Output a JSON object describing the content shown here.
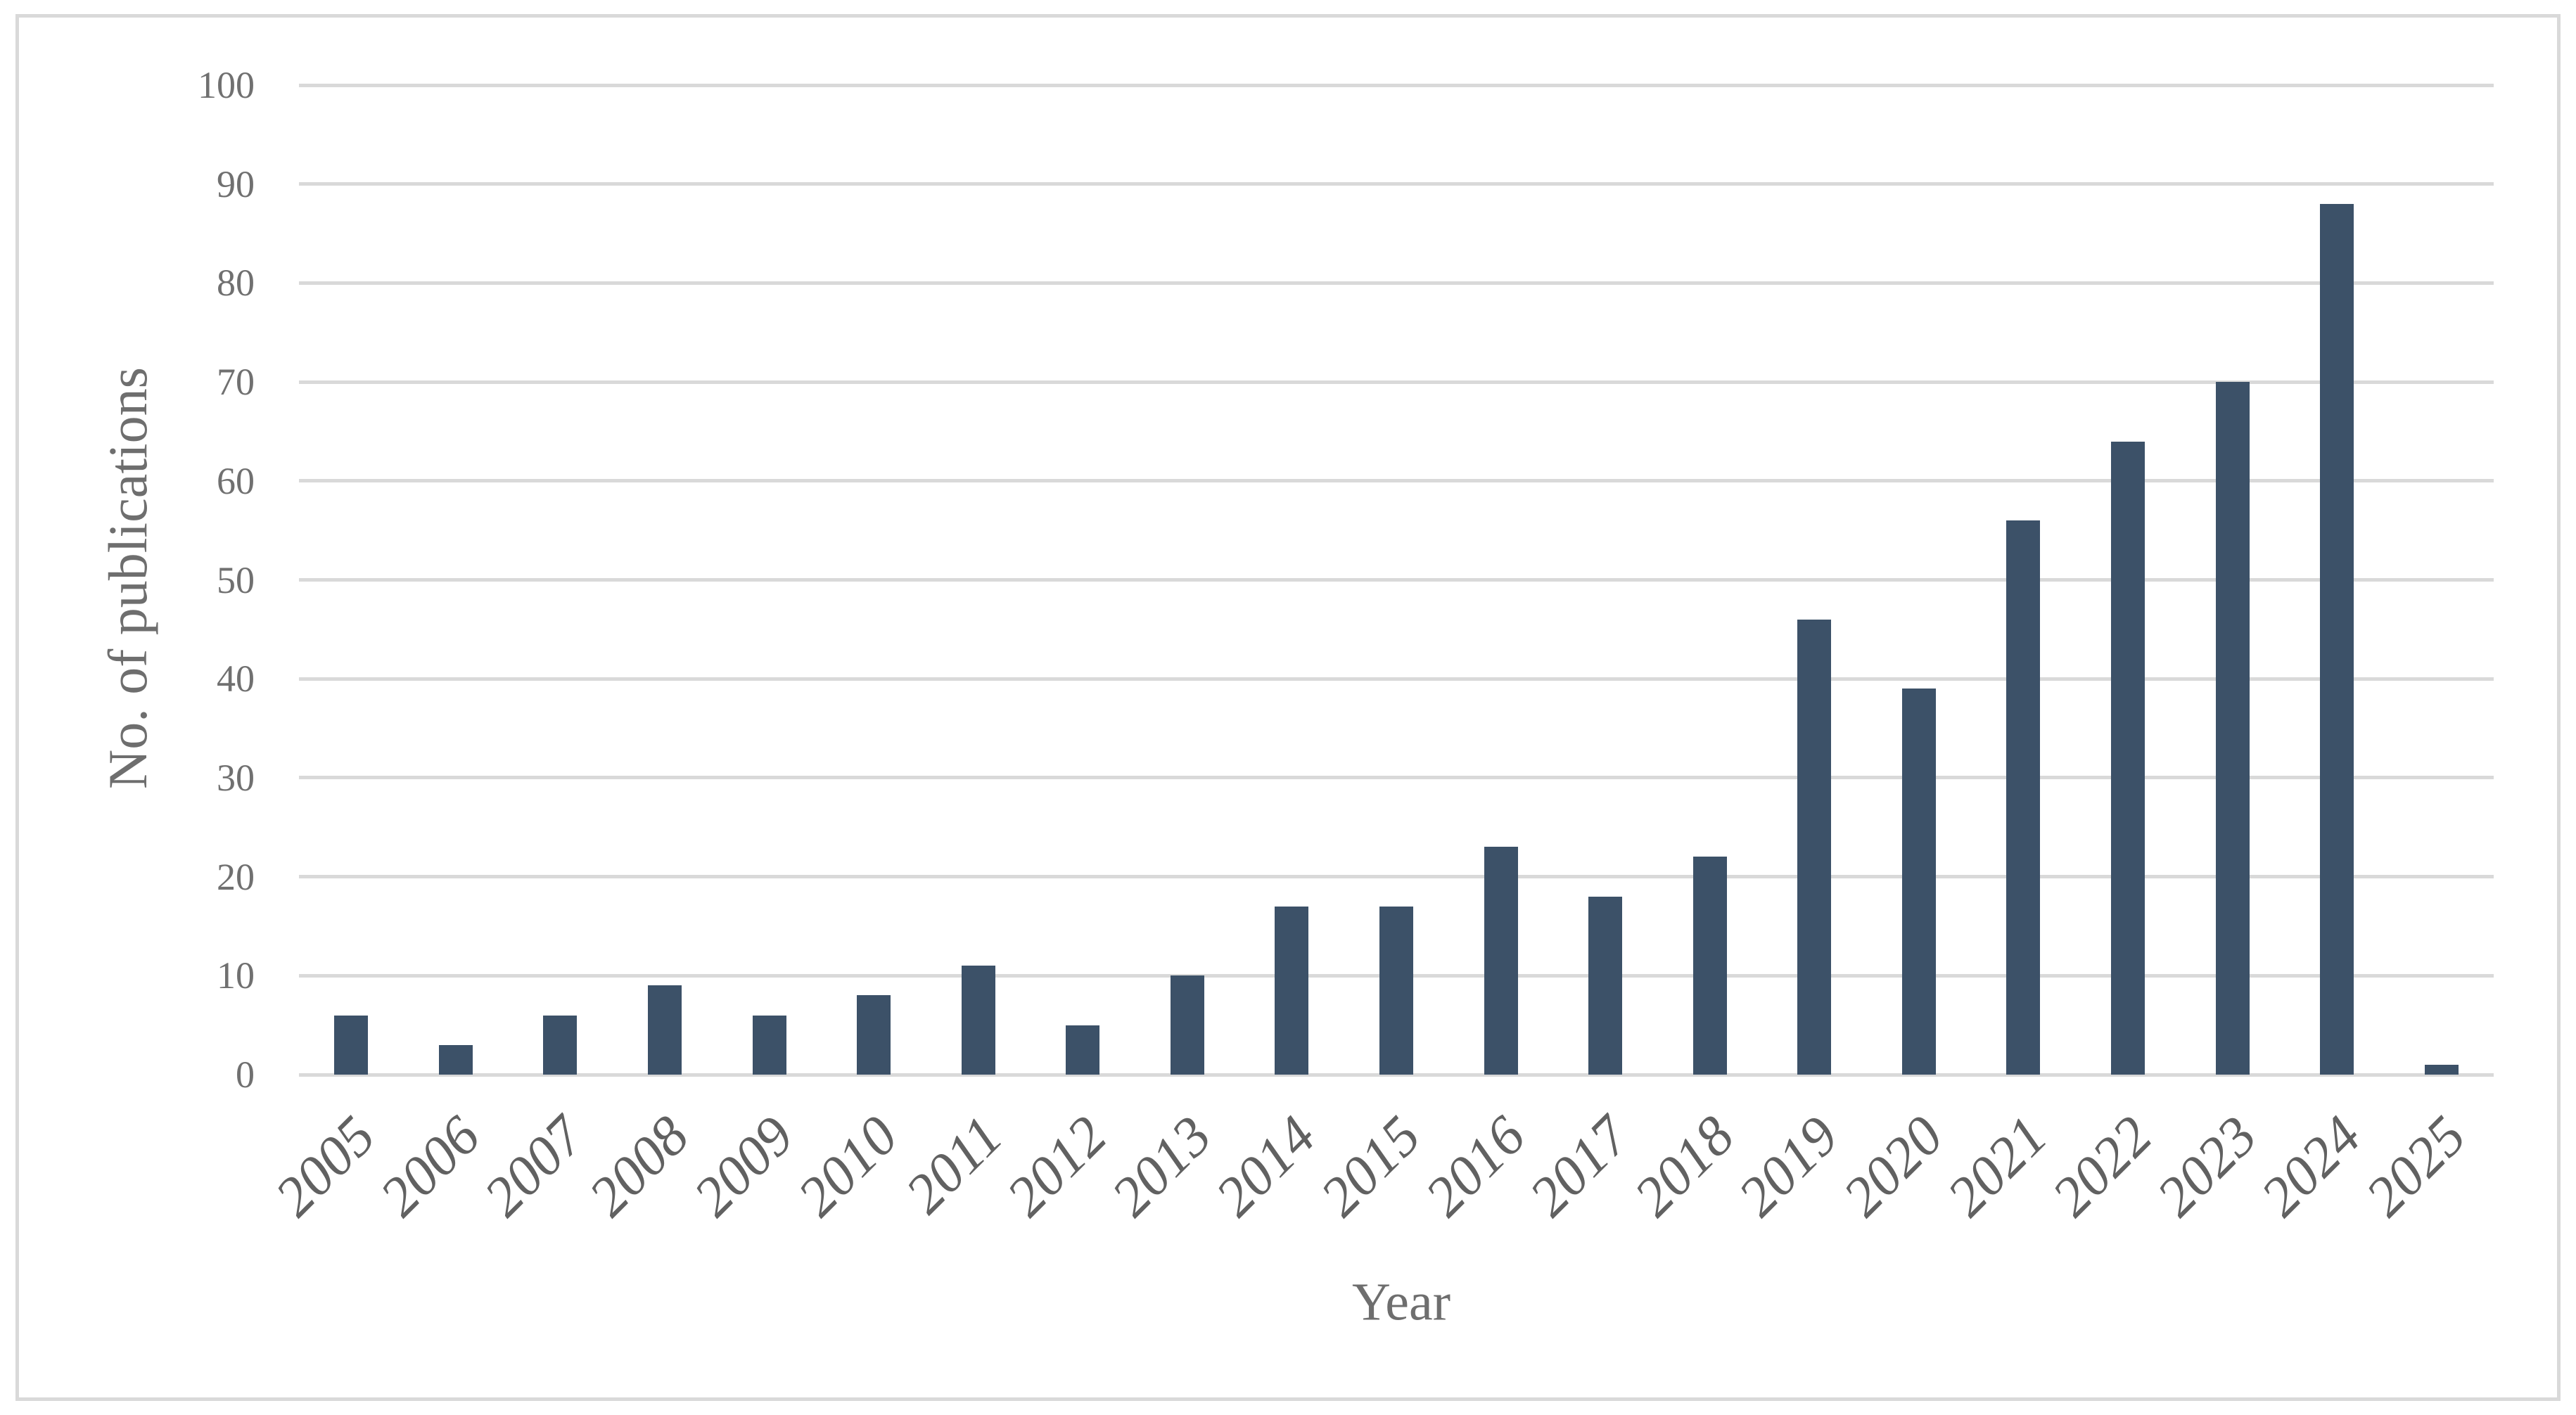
{
  "figure": {
    "background_color": "#FFFFFF",
    "border_color": "#D9D9D9"
  },
  "chart_data": {
    "type": "bar",
    "title": "",
    "xlabel": "Year",
    "ylabel": "No. of publications",
    "categories": [
      "2005",
      "2006",
      "2007",
      "2008",
      "2009",
      "2010",
      "2011",
      "2012",
      "2013",
      "2014",
      "2015",
      "2016",
      "2017",
      "2018",
      "2019",
      "2020",
      "2021",
      "2022",
      "2023",
      "2024",
      "2025"
    ],
    "values": [
      6,
      3,
      6,
      9,
      6,
      8,
      11,
      5,
      10,
      17,
      17,
      23,
      18,
      22,
      46,
      39,
      56,
      64,
      70,
      88,
      1
    ],
    "ylim": [
      0,
      100
    ],
    "yticks": [
      0,
      10,
      20,
      30,
      40,
      50,
      60,
      70,
      80,
      90,
      100
    ],
    "grid": "horizontal gridlines on, vertical off",
    "legend": "none",
    "bar_color": "#3C5168",
    "gridline_color": "#D9D9D9",
    "ytick_label_color": "#707070",
    "xtick_label_color": "#616161",
    "axis_title_color": "#6E6E6E"
  }
}
